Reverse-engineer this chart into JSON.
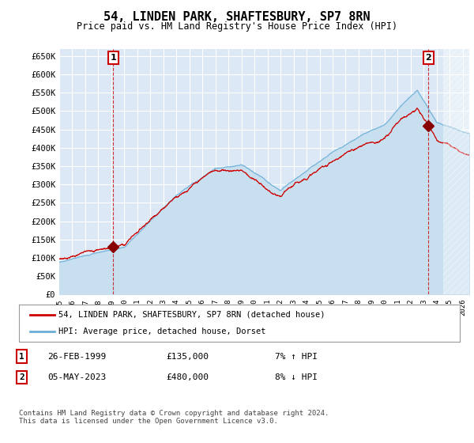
{
  "title": "54, LINDEN PARK, SHAFTESBURY, SP7 8RN",
  "subtitle": "Price paid vs. HM Land Registry's House Price Index (HPI)",
  "ylabel_ticks": [
    "£0",
    "£50K",
    "£100K",
    "£150K",
    "£200K",
    "£250K",
    "£300K",
    "£350K",
    "£400K",
    "£450K",
    "£500K",
    "£550K",
    "£600K",
    "£650K"
  ],
  "ytick_values": [
    0,
    50000,
    100000,
    150000,
    200000,
    250000,
    300000,
    350000,
    400000,
    450000,
    500000,
    550000,
    600000,
    650000
  ],
  "ylim": [
    0,
    670000
  ],
  "xlim_start": 1995.0,
  "xlim_end": 2026.5,
  "background_color": "#ffffff",
  "plot_bg_color": "#dce8f5",
  "grid_color": "#ffffff",
  "hpi_color": "#6baed6",
  "price_color": "#cc0000",
  "legend_label1": "54, LINDEN PARK, SHAFTESBURY, SP7 8RN (detached house)",
  "legend_label2": "HPI: Average price, detached house, Dorset",
  "note1_date": "26-FEB-1999",
  "note1_price": "£135,000",
  "note1_hpi": "7% ↑ HPI",
  "note2_date": "05-MAY-2023",
  "note2_price": "£480,000",
  "note2_hpi": "8% ↓ HPI",
  "footer": "Contains HM Land Registry data © Crown copyright and database right 2024.\nThis data is licensed under the Open Government Licence v3.0.",
  "xtick_years": [
    1995,
    1996,
    1997,
    1998,
    1999,
    2000,
    2001,
    2002,
    2003,
    2004,
    2005,
    2006,
    2007,
    2008,
    2009,
    2010,
    2011,
    2012,
    2013,
    2014,
    2015,
    2016,
    2017,
    2018,
    2019,
    2020,
    2021,
    2022,
    2023,
    2024,
    2025,
    2026
  ],
  "transaction1_year": 1999.15,
  "transaction1_price": 135000,
  "transaction2_year": 2023.37,
  "transaction2_price": 480000
}
